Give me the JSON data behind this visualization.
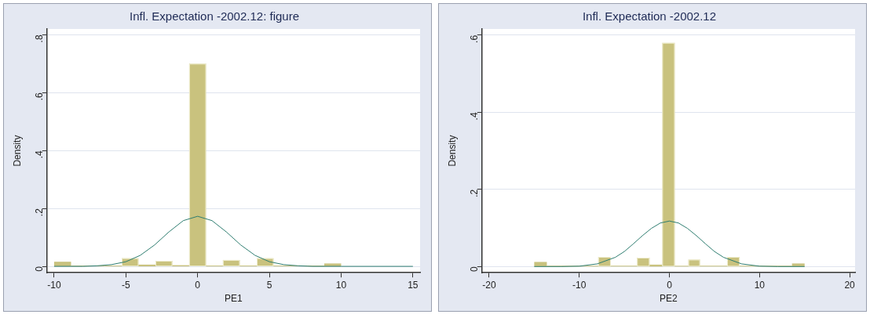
{
  "chart_data": [
    {
      "type": "histogram",
      "title": "Infl. Expectation -2002.12: figure",
      "xlabel": "PE1",
      "ylabel": "Density",
      "xlim": [
        -10.5,
        15.5
      ],
      "ylim": [
        -0.022,
        0.82
      ],
      "xticks": [
        -10,
        -5,
        0,
        5,
        10,
        15
      ],
      "yticks": [
        {
          "value": 0,
          "label": "0"
        },
        {
          "value": 0.2,
          "label": ".2"
        },
        {
          "value": 0.4,
          "label": ".4"
        },
        {
          "value": 0.6,
          "label": ".6"
        },
        {
          "value": 0.8,
          "label": ".8"
        }
      ],
      "grid": "y",
      "legend": false,
      "series": [
        {
          "type": "histogram",
          "color": "#c9c27e",
          "bins": [
            -10,
            -8.82,
            -7.65,
            -6.47,
            -5.29,
            -4.12,
            -2.94,
            -1.76,
            -0.59,
            0.59,
            1.76,
            2.94,
            4.12,
            5.29,
            6.47,
            7.65,
            8.82,
            10
          ],
          "values": [
            0.016,
            0,
            0,
            0,
            0.028,
            0.006,
            0.019,
            0.004,
            0.7,
            0,
            0.022,
            0,
            0.028,
            0,
            0,
            0,
            0.01
          ]
        },
        {
          "type": "line",
          "color": "#2e7d70",
          "x": [
            -10,
            -8,
            -7,
            -6,
            -5,
            -4,
            -3,
            -2,
            -1,
            0,
            1,
            2,
            3,
            4,
            5,
            6,
            7,
            8,
            10,
            15
          ],
          "values": [
            0,
            0,
            0.002,
            0.006,
            0.016,
            0.038,
            0.074,
            0.119,
            0.158,
            0.173,
            0.158,
            0.119,
            0.074,
            0.038,
            0.016,
            0.006,
            0.002,
            0,
            0,
            0
          ]
        }
      ]
    },
    {
      "type": "histogram",
      "title": "Infl. Expectation -2002.12",
      "xlabel": "PE2",
      "ylabel": "Density",
      "xlim": [
        -20.8,
        20.6
      ],
      "ylim": [
        -0.016,
        0.616
      ],
      "xticks": [
        -20,
        -10,
        0,
        10,
        20
      ],
      "yticks": [
        {
          "value": 0,
          "label": "0"
        },
        {
          "value": 0.2,
          "label": ".2"
        },
        {
          "value": 0.4,
          "label": ".4"
        },
        {
          "value": 0.6,
          "label": ".6"
        }
      ],
      "grid": "y",
      "legend": false,
      "series": [
        {
          "type": "histogram",
          "color": "#c9c27e",
          "bins": [
            -15,
            -13.6,
            -7.9,
            -6.5,
            -3.6,
            -2.2,
            -0.8,
            0.6,
            2.1,
            3.4,
            6.4,
            7.8,
            13.6,
            15
          ],
          "values": [
            0.012,
            0,
            0.025,
            0,
            0.023,
            0.005,
            0.58,
            0,
            0.018,
            0,
            0.025,
            0,
            0.008
          ]
        },
        {
          "type": "line",
          "color": "#2e7d70",
          "x": [
            -15,
            -12,
            -10,
            -8,
            -6,
            -5,
            -4,
            -3,
            -2,
            -1,
            0,
            1,
            2,
            3,
            4,
            5,
            6,
            8,
            10,
            12,
            15
          ],
          "values": [
            0,
            0,
            0.001,
            0.007,
            0.024,
            0.039,
            0.059,
            0.08,
            0.099,
            0.113,
            0.118,
            0.113,
            0.099,
            0.08,
            0.059,
            0.039,
            0.024,
            0.007,
            0.001,
            0,
            0
          ]
        }
      ]
    }
  ]
}
